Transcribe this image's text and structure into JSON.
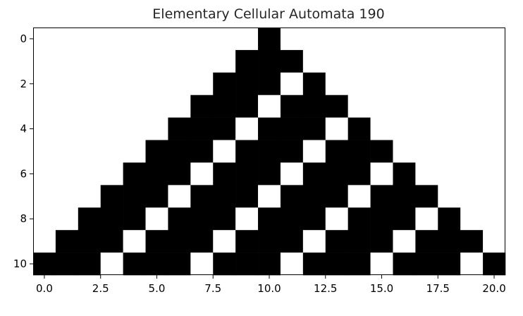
{
  "chart_data": {
    "type": "heatmap",
    "title": "Elementary Cellular Automata 190",
    "xlabel": "",
    "ylabel": "",
    "x_ticks": [
      "0.0",
      "2.5",
      "5.0",
      "7.5",
      "10.0",
      "12.5",
      "15.0",
      "17.5",
      "20.0"
    ],
    "x_tick_values": [
      0,
      2.5,
      5,
      7.5,
      10,
      12.5,
      15,
      17.5,
      20
    ],
    "y_ticks": [
      "0",
      "2",
      "4",
      "6",
      "8",
      "10"
    ],
    "y_tick_values": [
      0,
      2,
      4,
      6,
      8,
      10
    ],
    "xlim": [
      -0.5,
      20.5
    ],
    "ylim": [
      10.5,
      -0.5
    ],
    "colormap": "binary",
    "cell_colors": {
      "0": "#ffffff",
      "1": "#000000"
    },
    "grid": false,
    "values": [
      [
        0,
        0,
        0,
        0,
        0,
        0,
        0,
        0,
        0,
        0,
        1,
        0,
        0,
        0,
        0,
        0,
        0,
        0,
        0,
        0,
        0
      ],
      [
        0,
        0,
        0,
        0,
        0,
        0,
        0,
        0,
        0,
        1,
        1,
        1,
        0,
        0,
        0,
        0,
        0,
        0,
        0,
        0,
        0
      ],
      [
        0,
        0,
        0,
        0,
        0,
        0,
        0,
        0,
        1,
        1,
        1,
        0,
        1,
        0,
        0,
        0,
        0,
        0,
        0,
        0,
        0
      ],
      [
        0,
        0,
        0,
        0,
        0,
        0,
        0,
        1,
        1,
        1,
        0,
        1,
        1,
        1,
        0,
        0,
        0,
        0,
        0,
        0,
        0
      ],
      [
        0,
        0,
        0,
        0,
        0,
        0,
        1,
        1,
        1,
        0,
        1,
        1,
        1,
        0,
        1,
        0,
        0,
        0,
        0,
        0,
        0
      ],
      [
        0,
        0,
        0,
        0,
        0,
        1,
        1,
        1,
        0,
        1,
        1,
        1,
        0,
        1,
        1,
        1,
        0,
        0,
        0,
        0,
        0
      ],
      [
        0,
        0,
        0,
        0,
        1,
        1,
        1,
        0,
        1,
        1,
        1,
        0,
        1,
        1,
        1,
        0,
        1,
        0,
        0,
        0,
        0
      ],
      [
        0,
        0,
        0,
        1,
        1,
        1,
        0,
        1,
        1,
        1,
        0,
        1,
        1,
        1,
        0,
        1,
        1,
        1,
        0,
        0,
        0
      ],
      [
        0,
        0,
        1,
        1,
        1,
        0,
        1,
        1,
        1,
        0,
        1,
        1,
        1,
        0,
        1,
        1,
        1,
        0,
        1,
        0,
        0
      ],
      [
        0,
        1,
        1,
        1,
        0,
        1,
        1,
        1,
        0,
        1,
        1,
        1,
        0,
        1,
        1,
        1,
        0,
        1,
        1,
        1,
        0
      ],
      [
        1,
        1,
        1,
        0,
        1,
        1,
        1,
        0,
        1,
        1,
        1,
        0,
        1,
        1,
        1,
        0,
        1,
        1,
        1,
        0,
        1
      ]
    ]
  }
}
